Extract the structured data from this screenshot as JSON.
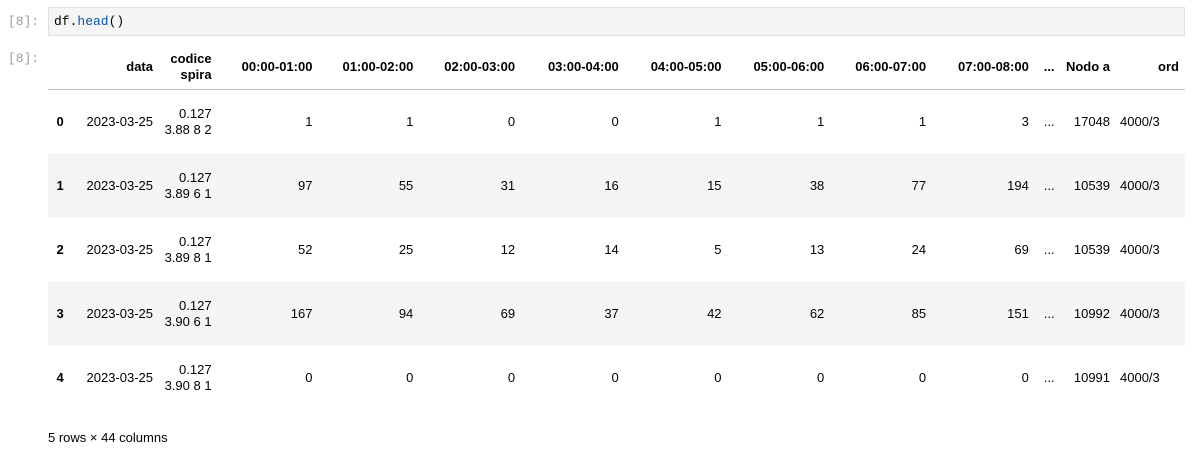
{
  "cell": {
    "in_prompt": "[8]:",
    "out_prompt": "[8]:",
    "code_obj": "df.",
    "code_fn": "head",
    "code_args": "()"
  },
  "table": {
    "columns": [
      "",
      "data",
      "codice spira",
      "00:00-01:00",
      "01:00-02:00",
      "02:00-03:00",
      "03:00-04:00",
      "04:00-05:00",
      "05:00-06:00",
      "06:00-07:00",
      "07:00-08:00",
      "...",
      "Nodo a",
      "ord"
    ],
    "rows": [
      [
        "0",
        "2023-03-25",
        "0.127 3.88 8 2",
        "1",
        "1",
        "0",
        "0",
        "1",
        "1",
        "1",
        "3",
        "...",
        "17048",
        "4000/3"
      ],
      [
        "1",
        "2023-03-25",
        "0.127 3.89 6 1",
        "97",
        "55",
        "31",
        "16",
        "15",
        "38",
        "77",
        "194",
        "...",
        "10539",
        "4000/3"
      ],
      [
        "2",
        "2023-03-25",
        "0.127 3.89 8 1",
        "52",
        "25",
        "12",
        "14",
        "5",
        "13",
        "24",
        "69",
        "...",
        "10539",
        "4000/3"
      ],
      [
        "3",
        "2023-03-25",
        "0.127 3.90 6 1",
        "167",
        "94",
        "69",
        "37",
        "42",
        "62",
        "85",
        "151",
        "...",
        "10992",
        "4000/3"
      ],
      [
        "4",
        "2023-03-25",
        "0.127 3.90 8 1",
        "0",
        "0",
        "0",
        "0",
        "0",
        "0",
        "0",
        "0",
        "...",
        "10991",
        "4000/3"
      ]
    ]
  },
  "footer": "5 rows × 44 columns"
}
